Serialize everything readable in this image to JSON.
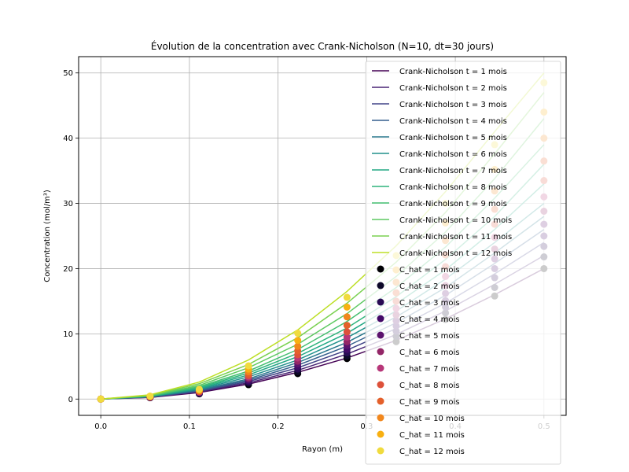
{
  "chart_data": {
    "type": "line",
    "title": "Évolution de la concentration avec Crank-Nicholson (N=10, dt=30 jours)",
    "xlabel": "Rayon (m)",
    "ylabel": "Concentration (mol/m³)",
    "xlim": [
      -0.025,
      0.525
    ],
    "ylim": [
      -2.5,
      52.5
    ],
    "xticks": [
      0.0,
      0.1,
      0.2,
      0.3,
      0.4,
      0.5
    ],
    "xtick_labels": [
      "0.0",
      "0.1",
      "0.2",
      "0.3",
      "0.4",
      "0.5"
    ],
    "yticks": [
      0,
      10,
      20,
      30,
      40,
      50
    ],
    "ytick_labels": [
      "0",
      "10",
      "20",
      "30",
      "40",
      "50"
    ],
    "grid": true,
    "legend_position": "top-right",
    "x": [
      0.0,
      0.0556,
      0.1111,
      0.1667,
      0.2222,
      0.2778,
      0.3333,
      0.3889,
      0.4444,
      0.5
    ],
    "line_series": [
      {
        "name": "Crank-Nicholson t = 1 mois",
        "color": "#440154",
        "values": [
          0,
          0.25,
          1.0,
          2.3,
          4.1,
          6.3,
          9.0,
          12.3,
          16.0,
          20.0
        ]
      },
      {
        "name": "Crank-Nicholson t = 2 mois",
        "color": "#482475",
        "values": [
          0,
          0.27,
          1.09,
          2.5,
          4.4,
          6.9,
          9.9,
          13.5,
          17.6,
          22.0
        ]
      },
      {
        "name": "Crank-Nicholson t = 3 mois",
        "color": "#414487",
        "values": [
          0,
          0.3,
          1.19,
          2.7,
          4.8,
          7.5,
          10.8,
          14.7,
          19.2,
          24.0
        ]
      },
      {
        "name": "Crank-Nicholson t = 4 mois",
        "color": "#355f8d",
        "values": [
          0,
          0.32,
          1.29,
          2.9,
          5.2,
          8.1,
          11.7,
          15.9,
          20.8,
          26.0
        ]
      },
      {
        "name": "Crank-Nicholson t = 5 mois",
        "color": "#2a788e",
        "values": [
          0,
          0.35,
          1.39,
          3.1,
          5.6,
          8.7,
          12.6,
          17.1,
          22.4,
          28.0
        ]
      },
      {
        "name": "Crank-Nicholson t = 6 mois",
        "color": "#21918c",
        "values": [
          0,
          0.38,
          1.5,
          3.4,
          6.0,
          9.4,
          13.5,
          18.4,
          24.0,
          30.0
        ]
      },
      {
        "name": "Crank-Nicholson t = 7 mois",
        "color": "#22a884",
        "values": [
          0,
          0.41,
          1.62,
          3.7,
          6.5,
          10.1,
          14.6,
          19.8,
          26.0,
          33.0
        ]
      },
      {
        "name": "Crank-Nicholson t = 8 mois",
        "color": "#2fb47c",
        "values": [
          0,
          0.44,
          1.75,
          4.0,
          7.0,
          10.9,
          15.7,
          21.4,
          28.0,
          36.0
        ]
      },
      {
        "name": "Crank-Nicholson t = 9 mois",
        "color": "#44bf70",
        "values": [
          0,
          0.48,
          1.9,
          4.3,
          7.6,
          11.9,
          17.1,
          23.3,
          30.8,
          39.0
        ]
      },
      {
        "name": "Crank-Nicholson t = 10 mois",
        "color": "#5ec962",
        "values": [
          0,
          0.52,
          2.1,
          4.8,
          8.4,
          13.1,
          18.8,
          25.6,
          33.8,
          43.0
        ]
      },
      {
        "name": "Crank-Nicholson t = 11 mois",
        "color": "#7ad151",
        "values": [
          0,
          0.58,
          2.35,
          5.3,
          9.4,
          14.7,
          21.0,
          28.6,
          37.6,
          47.0
        ]
      },
      {
        "name": "Crank-Nicholson t = 12 mois",
        "color": "#bddf26",
        "values": [
          0,
          0.65,
          2.6,
          6.0,
          10.6,
          16.5,
          23.5,
          31.8,
          41.0,
          50.0
        ]
      }
    ],
    "scatter_series": [
      {
        "name": "C_hat = 1 mois",
        "color": "#000004",
        "values": [
          0,
          0.2,
          0.8,
          2.2,
          3.9,
          6.2,
          8.8,
          12.2,
          15.8,
          20.0
        ]
      },
      {
        "name": "C_hat = 2 mois",
        "color": "#0d0829",
        "values": [
          0,
          0.21,
          0.85,
          2.4,
          4.2,
          6.6,
          9.6,
          13.2,
          17.1,
          21.8
        ]
      },
      {
        "name": "C_hat = 3 mois",
        "color": "#280b54",
        "values": [
          0,
          0.23,
          0.9,
          2.6,
          4.6,
          7.1,
          10.4,
          14.1,
          18.6,
          23.4
        ]
      },
      {
        "name": "C_hat = 4 mois",
        "color": "#420a68",
        "values": [
          0,
          0.24,
          0.95,
          2.8,
          5.0,
          7.6,
          11.2,
          15.1,
          20.0,
          25.0
        ]
      },
      {
        "name": "C_hat = 5 mois",
        "color": "#5c126e",
        "values": [
          0,
          0.26,
          1.0,
          3.0,
          5.4,
          8.2,
          12.0,
          16.2,
          21.5,
          26.8
        ]
      },
      {
        "name": "C_hat = 6 mois",
        "color": "#932667",
        "values": [
          0,
          0.28,
          1.05,
          3.2,
          5.8,
          8.8,
          12.9,
          17.4,
          23.0,
          28.8
        ]
      },
      {
        "name": "C_hat = 7 mois",
        "color": "#b73779",
        "values": [
          0,
          0.3,
          1.1,
          3.4,
          6.3,
          9.5,
          13.9,
          18.8,
          24.8,
          31.0
        ]
      },
      {
        "name": "C_hat = 8 mois",
        "color": "#dd513a",
        "values": [
          0,
          0.32,
          1.15,
          3.6,
          6.8,
          10.3,
          15.0,
          20.3,
          26.8,
          33.5
        ]
      },
      {
        "name": "C_hat = 9 mois",
        "color": "#e4602b",
        "values": [
          0,
          0.35,
          1.2,
          3.9,
          7.4,
          11.3,
          16.3,
          22.1,
          29.1,
          36.5
        ]
      },
      {
        "name": "C_hat = 10 mois",
        "color": "#f1871d",
        "values": [
          0,
          0.38,
          1.3,
          4.2,
          8.1,
          12.6,
          17.9,
          24.3,
          31.9,
          40.0
        ]
      },
      {
        "name": "C_hat = 11 mois",
        "color": "#f8b012",
        "values": [
          0,
          0.42,
          1.4,
          4.6,
          9.0,
          14.1,
          19.8,
          27.0,
          35.2,
          44.0
        ]
      },
      {
        "name": "C_hat = 12 mois",
        "color": "#f0db3e",
        "values": [
          0,
          0.46,
          1.5,
          5.1,
          10.1,
          15.6,
          22.0,
          30.0,
          39.0,
          48.5
        ]
      }
    ]
  }
}
